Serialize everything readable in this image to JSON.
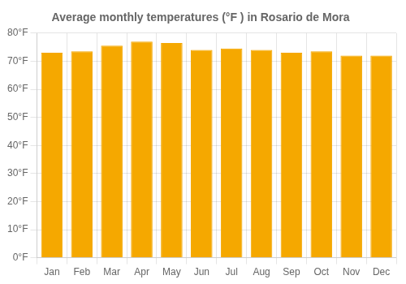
{
  "chart_data": {
    "type": "bar",
    "title": "Average monthly temperatures (°F ) in Rosario de Mora",
    "categories": [
      "Jan",
      "Feb",
      "Mar",
      "Apr",
      "May",
      "Jun",
      "Jul",
      "Aug",
      "Sep",
      "Oct",
      "Nov",
      "Dec"
    ],
    "values": [
      73,
      73.5,
      75.5,
      77,
      76.5,
      74,
      74.5,
      74,
      73,
      73.5,
      72,
      72
    ],
    "color": "#F5A800",
    "ylim": [
      0,
      80
    ],
    "yticks": [
      {
        "value": 0,
        "label": "0°F"
      },
      {
        "value": 10,
        "label": "10°F"
      },
      {
        "value": 20,
        "label": "20°F"
      },
      {
        "value": 30,
        "label": "30°F"
      },
      {
        "value": 40,
        "label": "40°F"
      },
      {
        "value": 50,
        "label": "50°F"
      },
      {
        "value": 60,
        "label": "60°F"
      },
      {
        "value": 70,
        "label": "70°F"
      },
      {
        "value": 80,
        "label": "80°F"
      }
    ],
    "grid": true
  }
}
